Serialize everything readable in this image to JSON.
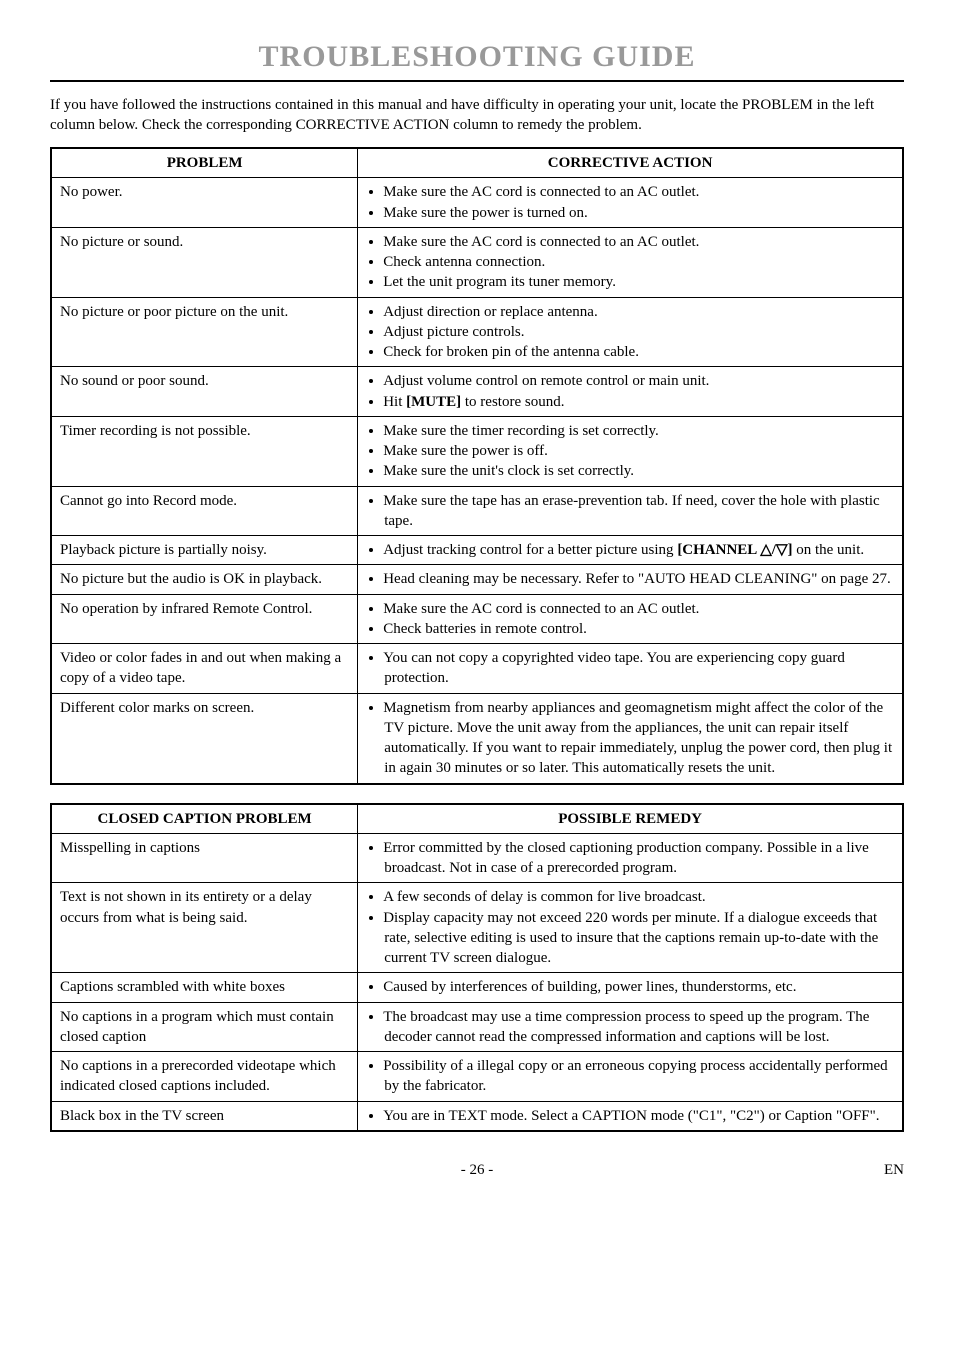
{
  "title": "TROUBLESHOOTING GUIDE",
  "intro": "If you have followed the instructions contained in this manual and have difficulty in operating your unit, locate the PROBLEM in the left column below. Check the corresponding CORRECTIVE ACTION column to remedy the problem.",
  "table1": {
    "headers": [
      "PROBLEM",
      "CORRECTIVE ACTION"
    ],
    "rows": [
      {
        "problem": "No power.",
        "actions": [
          "Make sure the AC cord is connected to an AC outlet.",
          "Make sure the power is turned on."
        ]
      },
      {
        "problem": "No picture or sound.",
        "actions": [
          "Make sure the AC cord is connected to an AC outlet.",
          "Check antenna connection.",
          "Let the unit program its tuner memory."
        ]
      },
      {
        "problem": "No picture or poor picture on the unit.",
        "actions": [
          "Adjust direction or replace antenna.",
          "Adjust picture controls.",
          "Check for broken pin of the antenna cable."
        ]
      },
      {
        "problem": "No sound or poor sound.",
        "actions": [
          "Adjust volume control on remote control or main unit.",
          "Hit [MUTE] to restore sound."
        ]
      },
      {
        "problem": "Timer recording is not possible.",
        "actions": [
          "Make sure the timer recording is set correctly.",
          "Make sure the power is off.",
          "Make sure the unit's clock is set correctly."
        ]
      },
      {
        "problem": "Cannot go into Record mode.",
        "actions": [
          "Make sure the tape has an erase-prevention tab. If need, cover the hole with plastic tape."
        ]
      },
      {
        "problem": "Playback picture is partially noisy.",
        "actions": [
          "Adjust tracking control for a better picture using [CHANNEL △/▽] on the unit."
        ]
      },
      {
        "problem": "No picture but the audio is OK in playback.",
        "actions": [
          "Head cleaning may be necessary. Refer to \"AUTO HEAD CLEANING\" on page 27."
        ]
      },
      {
        "problem": "No operation by infrared Remote Control.",
        "actions": [
          "Make sure the AC cord is connected to an AC outlet.",
          "Check batteries in remote control."
        ]
      },
      {
        "problem": "Video or color fades in and out when making a copy of a video tape.",
        "actions": [
          "You can not copy a copyrighted video tape. You are experiencing copy guard protection."
        ]
      },
      {
        "problem": "Different color marks on screen.",
        "actions": [
          "Magnetism from nearby appliances and geomagnetism might affect the color of the TV picture. Move the unit away from the appliances, the unit can repair itself automatically. If you want to repair immediately, unplug the power cord, then plug it in again 30 minutes or so later. This automatically resets the unit."
        ]
      }
    ]
  },
  "table2": {
    "headers": [
      "CLOSED CAPTION PROBLEM",
      "POSSIBLE REMEDY"
    ],
    "rows": [
      {
        "problem": "Misspelling in captions",
        "actions": [
          "Error committed by the closed captioning production company. Possible in a live broadcast. Not in case of a prerecorded program."
        ]
      },
      {
        "problem": "Text is not shown in its entirety or a delay occurs from what is being said.",
        "actions": [
          "A few seconds of delay is common for live broadcast.",
          "Display capacity may not exceed 220 words per minute. If a dialogue exceeds that rate, selective editing is used to insure that the captions remain up-to-date with the current TV screen dialogue."
        ]
      },
      {
        "problem": "Captions scrambled with white boxes",
        "actions": [
          "Caused by interferences of building, power lines, thunderstorms, etc."
        ]
      },
      {
        "problem": "No captions in a program which must contain closed caption",
        "actions": [
          "The broadcast may use a time compression process to speed up the program. The decoder cannot read the compressed information and captions will be lost."
        ]
      },
      {
        "problem": "No captions in a prerecorded videotape which indicated closed captions included.",
        "actions": [
          "Possibility of a illegal copy or an erroneous copying process accidentally performed by the fabricator."
        ]
      },
      {
        "problem": "Black box in the TV screen",
        "actions": [
          "You are in TEXT mode. Select a CAPTION mode (\"C1\", \"C2\") or Caption \"OFF\"."
        ]
      }
    ]
  },
  "footer": {
    "page": "- 26 -",
    "lang": "EN"
  },
  "style": {
    "title_color": "#999999",
    "border_color": "#000000",
    "font_family": "Times New Roman"
  }
}
